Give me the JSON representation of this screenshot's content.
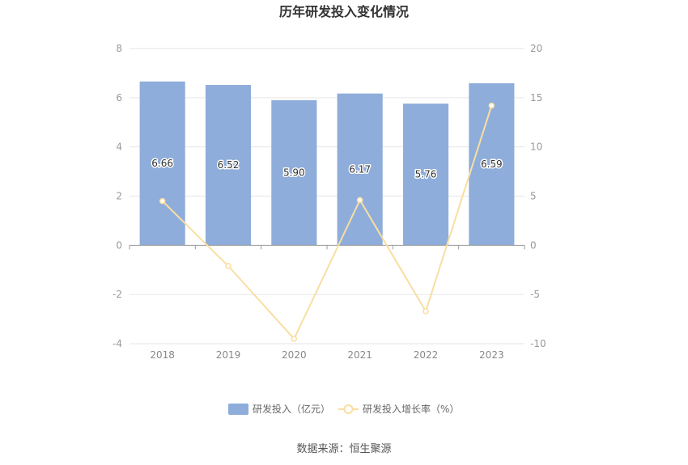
{
  "chart_data": {
    "type": "bar",
    "title": "历年研发投入变化情况",
    "categories": [
      "2018",
      "2019",
      "2020",
      "2021",
      "2022",
      "2023"
    ],
    "series": [
      {
        "name": "研发投入（亿元）",
        "type": "bar",
        "axis": "left",
        "color": "#8eadda",
        "values": [
          6.66,
          6.52,
          5.9,
          6.17,
          5.76,
          6.59
        ],
        "labels": [
          "6.66",
          "6.52",
          "5.90",
          "6.17",
          "5.76",
          "6.59"
        ]
      },
      {
        "name": "研发投入增长率（%）",
        "type": "line",
        "axis": "right",
        "color": "#f9dea2",
        "values": [
          4.5,
          -2.1,
          -9.5,
          4.6,
          -6.7,
          14.2
        ]
      }
    ],
    "y_left": {
      "min": -4,
      "max": 8,
      "ticks": [
        "8",
        "6",
        "4",
        "2",
        "0",
        "-2",
        "-4"
      ]
    },
    "y_right": {
      "min": -10,
      "max": 20,
      "ticks": [
        "20",
        "15",
        "10",
        "5",
        "0",
        "-5",
        "-10"
      ]
    },
    "grid": true,
    "legend_position": "bottom"
  },
  "source_text": "数据来源：恒生聚源"
}
